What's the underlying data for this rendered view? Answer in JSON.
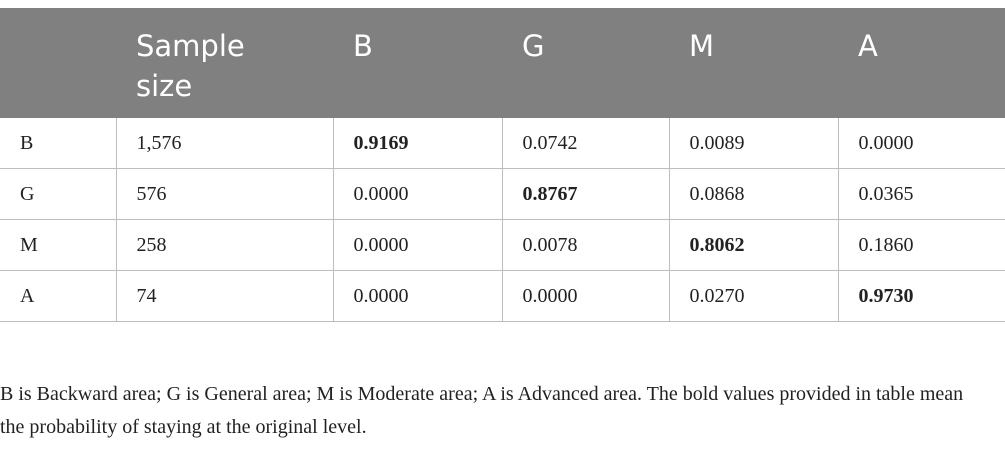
{
  "table": {
    "header": [
      "Sample size",
      "B",
      "G",
      "M",
      "A"
    ],
    "rows": [
      [
        "B",
        "1,576",
        "0.9169",
        "0.0742",
        "0.0089",
        "0.0000"
      ],
      [
        "G",
        "576",
        "0.0000",
        "0.8767",
        "0.0868",
        "0.0365"
      ],
      [
        "M",
        "258",
        "0.0000",
        "0.0078",
        "0.8062",
        "0.1860"
      ],
      [
        "A",
        "74",
        "0.0000",
        "0.0000",
        "0.0270",
        "0.9730"
      ]
    ],
    "bold_cells": [
      [
        0,
        2
      ],
      [
        1,
        3
      ],
      [
        2,
        4
      ],
      [
        3,
        5
      ]
    ]
  },
  "note": "B is Backward area; G is General area; M is Moderate area; A is Advanced area. The bold values provided in table mean the probability of staying at the original level."
}
